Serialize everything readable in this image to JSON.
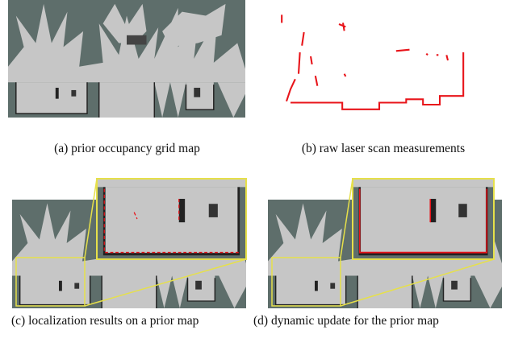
{
  "figure": {
    "subfigures": [
      {
        "caption": "(a) prior occupancy grid map"
      },
      {
        "caption": "(b) raw laser scan measurements"
      },
      {
        "caption": "(c) localization results on a prior map"
      },
      {
        "caption": "(d) dynamic update for the prior map"
      }
    ]
  }
}
